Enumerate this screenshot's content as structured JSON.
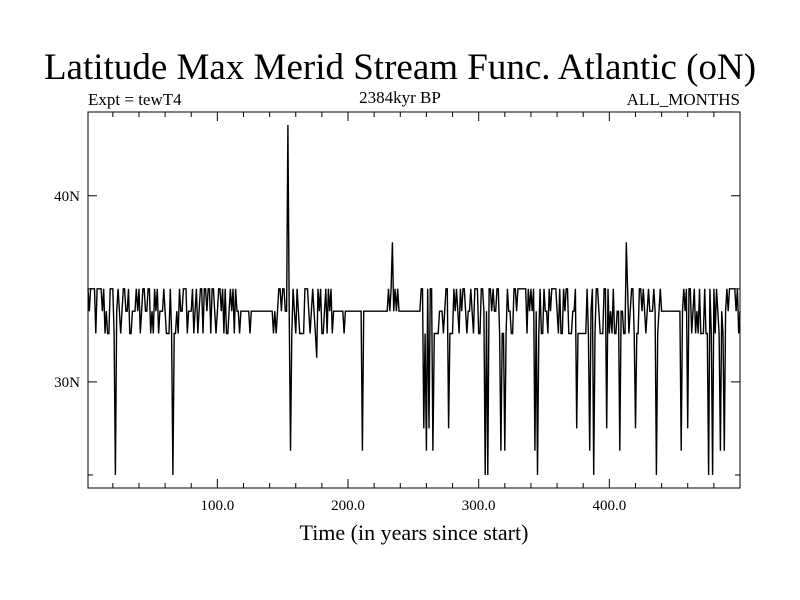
{
  "chart_data": {
    "type": "line",
    "title": "Latitude Max Merid Stream Func. Atlantic (oN)",
    "subtitle": "2384kyr BP",
    "left_label": "Expt = tewT4",
    "right_label": "ALL_MONTHS",
    "xlabel": "Time (in years since start)",
    "ylabel": "",
    "xlim": [
      1,
      500
    ],
    "ylim": [
      24.3,
      44.5
    ],
    "xticks": [
      100,
      200,
      300,
      400
    ],
    "xtick_labels": [
      "100.0",
      "200.0",
      "300.0",
      "400.0"
    ],
    "yticks": [
      30,
      40
    ],
    "ytick_labels": [
      "30N",
      "40N"
    ],
    "grid": false,
    "series": [
      {
        "name": "",
        "color": "#000000",
        "baseline": 33.8,
        "noise_levels": [
          32.6,
          33.8,
          35.0
        ],
        "spikes": [
          [
            22,
            25.0
          ],
          [
            66,
            25.0
          ],
          [
            154,
            43.8
          ],
          [
            156,
            26.3
          ],
          [
            176,
            31.3
          ],
          [
            211,
            26.3
          ],
          [
            234,
            37.5
          ],
          [
            258,
            27.5
          ],
          [
            260,
            26.3
          ],
          [
            262,
            27.5
          ],
          [
            265,
            26.3
          ],
          [
            277,
            27.5
          ],
          [
            305,
            25.0
          ],
          [
            307,
            25.0
          ],
          [
            317,
            26.3
          ],
          [
            320,
            26.3
          ],
          [
            343,
            26.3
          ],
          [
            345,
            25.0
          ],
          [
            375,
            27.5
          ],
          [
            385,
            26.3
          ],
          [
            388,
            25.0
          ],
          [
            398,
            27.5
          ],
          [
            408,
            26.3
          ],
          [
            413,
            37.5
          ],
          [
            420,
            27.5
          ],
          [
            436,
            25.0
          ],
          [
            455,
            26.3
          ],
          [
            460,
            27.5
          ],
          [
            476,
            25.0
          ],
          [
            479,
            25.0
          ],
          [
            485,
            26.3
          ],
          [
            488,
            26.3
          ]
        ]
      }
    ]
  }
}
